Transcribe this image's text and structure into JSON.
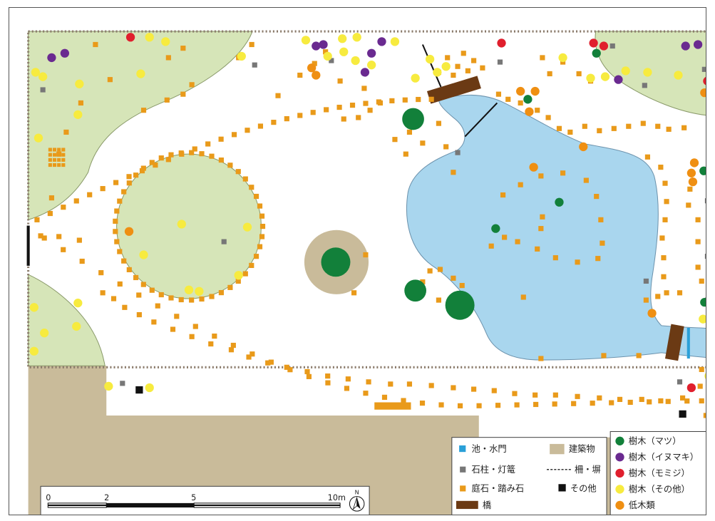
{
  "colors": {
    "lawn": "#d6e5b8",
    "lawn_border": "#8a9a6a",
    "water": "#a9d6ee",
    "water_border": "#6d93ad",
    "building": "#c9bb9a",
    "tree_pine": "#12803a",
    "tree_inumaki": "#6a2a90",
    "tree_maple": "#e01f2d",
    "tree_other": "#f7eb3f",
    "shrub": "#ef8f12",
    "stone": "#e99a1a",
    "lantern": "#777777",
    "bridge": "#6b3a14",
    "other_marker": "#111111",
    "gate": "#2aa0d8"
  },
  "legend": {
    "col1": [
      {
        "symbol": "blue-square",
        "label": "池・水門"
      },
      {
        "symbol": "gray-square",
        "label": "石柱・灯篭"
      },
      {
        "symbol": "orange-square",
        "label": "庭石・踏み石"
      },
      {
        "symbol": "bridge-bar",
        "label": "橋"
      }
    ],
    "col2": [
      {
        "symbol": "tan-square",
        "label": "建築物"
      },
      {
        "symbol": "dashed-line",
        "label": "柵・塀"
      },
      {
        "symbol": "black-square",
        "label": "その他"
      }
    ],
    "col3": [
      {
        "symbol": "green-circle",
        "label": "樹木（マツ）"
      },
      {
        "symbol": "purple-circle",
        "label": "樹木（イヌマキ）"
      },
      {
        "symbol": "red-circle",
        "label": "樹木（モミジ）"
      },
      {
        "symbol": "yellow-circle",
        "label": "樹木（その他）"
      },
      {
        "symbol": "orange-circle",
        "label": "低木類"
      }
    ]
  },
  "scale_bar": {
    "ticks": [
      "0",
      "2",
      "5",
      "10m"
    ],
    "north_label": "N"
  }
}
